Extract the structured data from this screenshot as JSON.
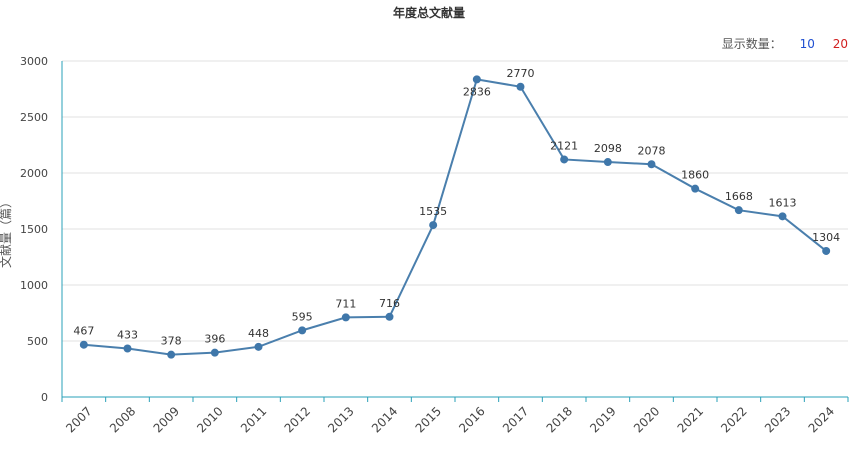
{
  "header": {
    "title": "年度总文献量",
    "display_count_label": "显示数量：",
    "display_options": [
      "10",
      "20"
    ]
  },
  "chart_data": {
    "type": "line",
    "title": "年度总文献量",
    "xlabel": "",
    "ylabel": "文献量（篇）",
    "ylim": [
      0,
      3000
    ],
    "yticks": [
      0,
      500,
      1000,
      1500,
      2000,
      2500,
      3000
    ],
    "grid": true,
    "categories": [
      "2007",
      "2008",
      "2009",
      "2010",
      "2011",
      "2012",
      "2013",
      "2014",
      "2015",
      "2016",
      "2017",
      "2018",
      "2019",
      "2020",
      "2021",
      "2022",
      "2023",
      "2024"
    ],
    "series": [
      {
        "values": [
          467,
          433,
          378,
          396,
          448,
          595,
          711,
          716,
          1535,
          2836,
          2770,
          2121,
          2098,
          2078,
          1860,
          1668,
          1613,
          1304
        ]
      }
    ],
    "colors": {
      "line": "#4a7fad",
      "point": "#3f77aa",
      "grid": "#e0e0e0",
      "axis": "#2aa0b8"
    }
  }
}
